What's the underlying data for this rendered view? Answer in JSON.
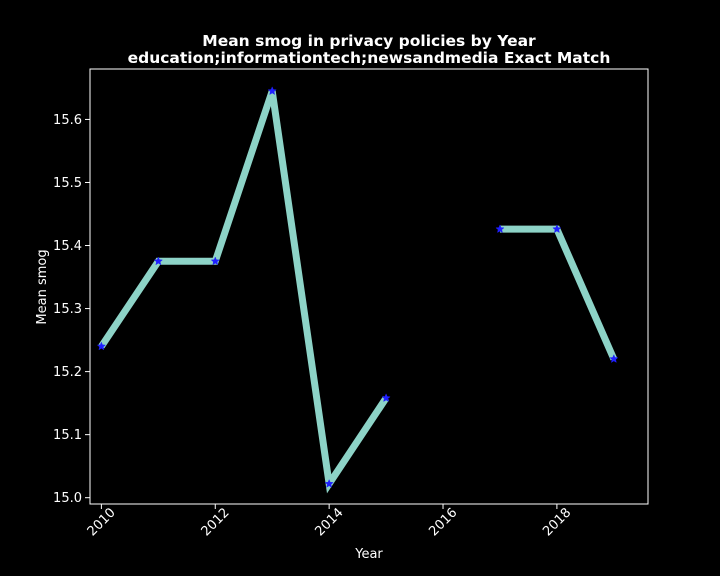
{
  "chart_data": {
    "type": "line",
    "title": "Mean smog in privacy policies by Year",
    "subtitle": "education;informationtech;newsandmedia Exact Match",
    "xlabel": "Year",
    "ylabel": "Mean smog",
    "xlim": [
      2009.8,
      2019.6
    ],
    "ylim": [
      14.99,
      15.68
    ],
    "x_ticks": [
      2010,
      2012,
      2014,
      2016,
      2018
    ],
    "y_ticks": [
      15.0,
      15.1,
      15.2,
      15.3,
      15.4,
      15.5,
      15.6
    ],
    "grid": false,
    "line_color": "#8dd3c7",
    "marker_color": "#1f1fff",
    "marker": "star",
    "series": [
      {
        "x": [
          2010,
          2011,
          2012,
          2013,
          2014,
          2015,
          2016,
          2017,
          2018,
          2019
        ],
        "y": [
          15.24,
          15.375,
          15.375,
          15.645,
          15.022,
          15.158,
          null,
          15.426,
          15.426,
          15.22
        ]
      }
    ]
  }
}
